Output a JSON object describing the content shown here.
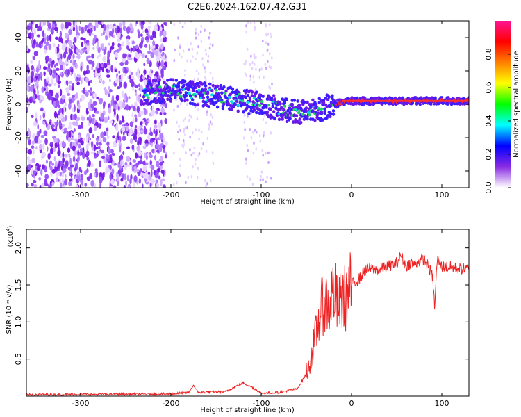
{
  "title": "C2E6.2024.162.07.42.G31",
  "chart_data": [
    {
      "type": "heatmap",
      "xlabel": "Height of straight line (km)",
      "ylabel": "Frequency (Hz)",
      "xlim": [
        -360,
        130
      ],
      "ylim": [
        -50,
        50
      ],
      "xticks": [
        -300,
        -200,
        -100,
        0,
        100
      ],
      "yticks": [
        -40,
        -20,
        0,
        20,
        40
      ],
      "colorbar": {
        "label": "Normalized spectral amplitude",
        "range": [
          0.0,
          1.0
        ],
        "ticks": [
          "0.0",
          "0.2",
          "0.4",
          "0.6",
          "0.8"
        ],
        "colormap": [
          "#ffffff",
          "#8a2be2",
          "#0000ff",
          "#00ffff",
          "#00ff00",
          "#ffff00",
          "#ff8000",
          "#ff0000",
          "#ff1493"
        ]
      },
      "trace": {
        "description_points_x": [
          -230,
          -200,
          -150,
          -100,
          -60,
          -40,
          -20,
          0,
          50,
          90,
          130
        ],
        "description_points_y": [
          7,
          8,
          5,
          0,
          -5,
          -4,
          0,
          2,
          2,
          2,
          2
        ]
      },
      "grid": false
    },
    {
      "type": "line",
      "xlabel": "Height of straight line (km)",
      "ylabel": "SNR (10 * v/v)",
      "yexponent_label": "(x10",
      "yexponent_sup": "4",
      "yexponent_close": ")",
      "xlim": [
        -360,
        130
      ],
      "ylim": [
        0,
        2.25
      ],
      "xticks": [
        -300,
        -200,
        -100,
        0,
        100
      ],
      "yticks": [
        "0.5",
        "1.0",
        "1.5",
        "2.0"
      ],
      "series": [
        {
          "color": "#ee2222",
          "x": [
            -360,
            -200,
            -180,
            -175,
            -170,
            -140,
            -120,
            -110,
            -100,
            -80,
            -60,
            -50,
            -45,
            -40,
            -35,
            -30,
            -25,
            -20,
            -15,
            -10,
            -5,
            0,
            5,
            10,
            15,
            20,
            30,
            40,
            50,
            55,
            60,
            65,
            70,
            80,
            85,
            90,
            92,
            95,
            100,
            110,
            120,
            130
          ],
          "y": [
            0.02,
            0.03,
            0.05,
            0.15,
            0.05,
            0.06,
            0.18,
            0.12,
            0.04,
            0.05,
            0.1,
            0.3,
            0.5,
            0.8,
            1.1,
            1.3,
            1.2,
            1.45,
            1.2,
            1.3,
            1.35,
            1.5,
            1.55,
            1.6,
            1.7,
            1.72,
            1.7,
            1.75,
            1.8,
            1.9,
            1.75,
            1.8,
            1.78,
            1.85,
            1.75,
            1.6,
            1.2,
            1.85,
            1.75,
            1.74,
            1.72,
            1.71
          ]
        }
      ],
      "grid": false
    }
  ]
}
